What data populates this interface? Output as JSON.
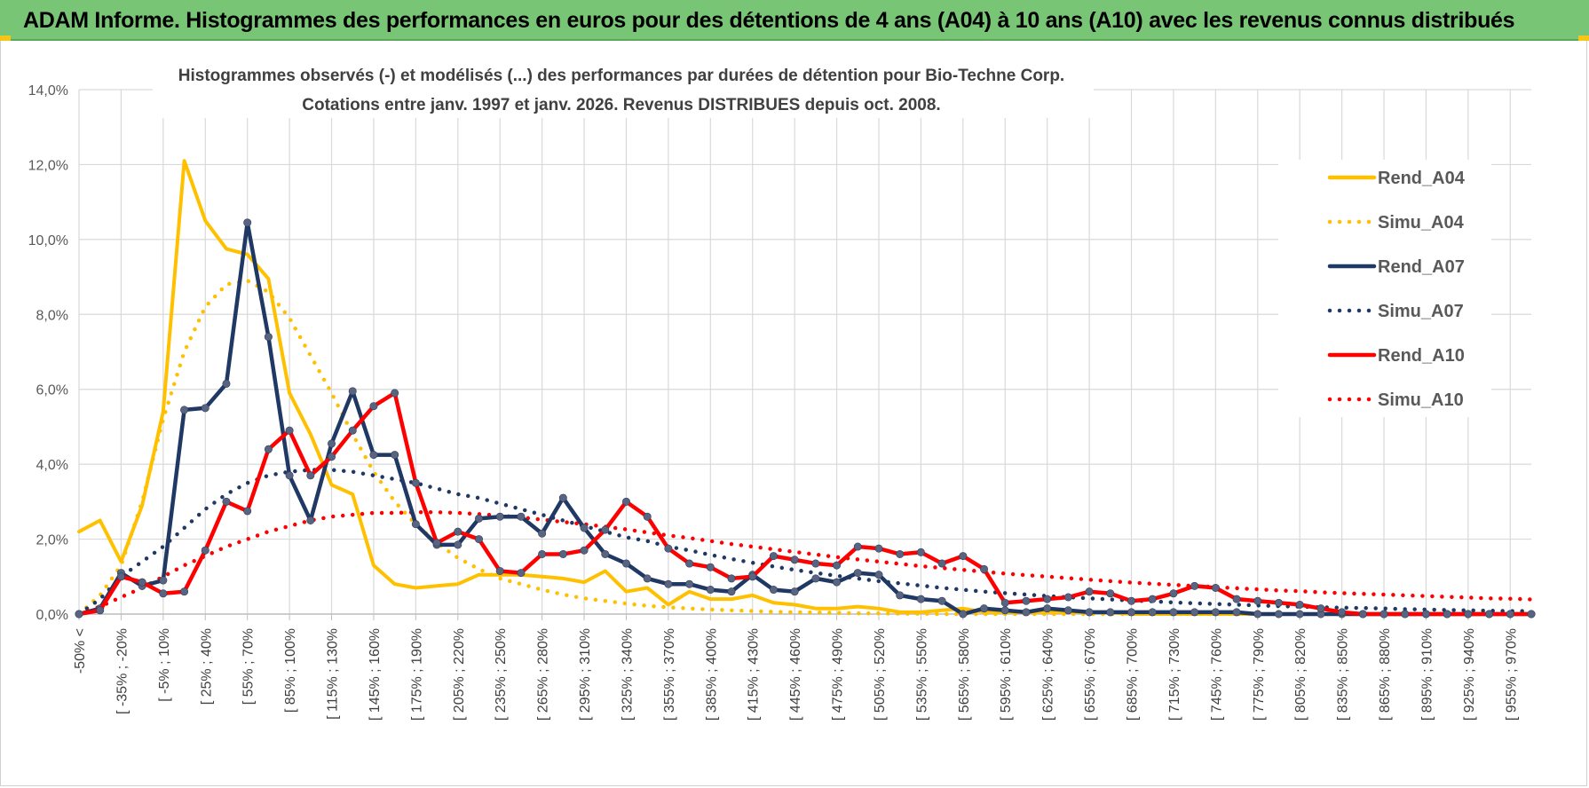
{
  "header": {
    "title": "ADAM Informe. Histogrammes des performances en euros pour des détentions de 4 ans (A04) à 10 ans (A10) avec les revenus connus distribués"
  },
  "chart_data": {
    "type": "line",
    "title": "Histogrammes observés (-) et modélisés (...) des performances par durées de détention pour Bio-Techne Corp.",
    "subtitle": "Cotations entre janv. 1997 et janv. 2026. Revenus DISTRIBUES depuis oct. 2008.",
    "xlabel": "",
    "ylabel": "",
    "ylim": [
      0,
      14
    ],
    "y_ticks": [
      "0,0%",
      "2,0%",
      "4,0%",
      "6,0%",
      "8,0%",
      "10,0%",
      "12,0%",
      "14,0%"
    ],
    "x_tick_labels": [
      "-50% <",
      "[ -35% ; -20%",
      "[ -5% ; 10%",
      "[ 25% ; 40%",
      "[ 55% ; 70%",
      "[ 85% ; 100%",
      "[ 115% ; 130%",
      "[ 145% ; 160%",
      "[ 175% ; 190%",
      "[ 205% ; 220%",
      "[ 235% ; 250%",
      "[ 265% ; 280%",
      "[ 295% ; 310%",
      "[ 325% ; 340%",
      "[ 355% ; 370%",
      "[ 385% ; 400%",
      "[ 415% ; 430%",
      "[ 445% ; 460%",
      "[ 475% ; 490%",
      "[ 505% ; 520%",
      "[ 535% ; 550%",
      "[ 565% ; 580%",
      "[ 595% ; 610%",
      "[ 625% ; 640%",
      "[ 655% ; 670%",
      "[ 685% ; 700%",
      "[ 715% ; 730%",
      "[ 745% ; 760%",
      "[ 775% ; 790%",
      "[ 805% ; 820%",
      "[ 835% ; 850%",
      "[ 865% ; 880%",
      "[ 895% ; 910%",
      "[ 925% ; 940%",
      "[ 955% ; 970%"
    ],
    "num_bins": 70,
    "legend_position": "right",
    "series": [
      {
        "name": "Rend_A04",
        "color": "#ffc000",
        "style": "solid",
        "markers": false,
        "values": [
          2.2,
          2.5,
          1.4,
          2.9,
          5.4,
          12.1,
          10.5,
          9.75,
          9.6,
          8.95,
          5.9,
          4.8,
          3.45,
          3.2,
          1.3,
          0.8,
          0.7,
          0.75,
          0.8,
          1.05,
          1.05,
          1.05,
          1.0,
          0.95,
          0.85,
          1.15,
          0.6,
          0.7,
          0.25,
          0.6,
          0.4,
          0.4,
          0.5,
          0.3,
          0.25,
          0.15,
          0.15,
          0.2,
          0.15,
          0.05,
          0.05,
          0.1,
          0.15,
          0.05,
          0.05,
          0.05,
          0.05,
          0.05,
          0.05,
          0.05,
          0.0,
          0.0,
          0.0,
          0.0,
          0.0,
          0.0,
          0.0,
          0.0,
          0.0,
          0.0,
          0.0,
          0.0,
          0.0,
          0.0,
          0.0,
          0.0,
          0.0,
          0.0,
          0.0,
          0.0
        ]
      },
      {
        "name": "Simu_A04",
        "color": "#ffc000",
        "style": "dotted",
        "markers": false,
        "values": [
          0.0,
          0.5,
          1.3,
          3.0,
          5.2,
          7.0,
          8.2,
          8.8,
          8.9,
          8.6,
          7.9,
          6.9,
          5.9,
          4.8,
          3.8,
          3.0,
          2.4,
          1.9,
          1.5,
          1.2,
          0.95,
          0.8,
          0.65,
          0.52,
          0.42,
          0.35,
          0.28,
          0.22,
          0.18,
          0.15,
          0.12,
          0.1,
          0.08,
          0.06,
          0.05,
          0.04,
          0.03,
          0.02,
          0.02,
          0.01,
          0.01,
          0.0,
          0.0,
          0.0,
          0.0,
          0.0,
          0.0,
          0.0,
          0.0,
          0.0,
          0.0,
          0.0,
          0.0,
          0.0,
          0.0,
          0.0,
          0.0,
          0.0,
          0.0,
          0.0,
          0.0,
          0.0,
          0.0,
          0.0,
          0.0,
          0.0,
          0.0,
          0.0,
          0.0,
          0.0
        ]
      },
      {
        "name": "Rend_A07",
        "color": "#1f3864",
        "style": "solid",
        "markers": true,
        "values": [
          0.0,
          0.15,
          1.1,
          0.75,
          0.9,
          5.45,
          5.5,
          6.15,
          10.45,
          7.4,
          3.7,
          2.5,
          4.55,
          5.95,
          4.25,
          4.25,
          2.4,
          1.85,
          1.85,
          2.55,
          2.6,
          2.6,
          2.15,
          3.1,
          2.3,
          1.6,
          1.35,
          0.95,
          0.8,
          0.8,
          0.65,
          0.6,
          1.05,
          0.65,
          0.6,
          0.95,
          0.85,
          1.1,
          1.05,
          0.5,
          0.4,
          0.35,
          0.0,
          0.15,
          0.1,
          0.05,
          0.15,
          0.1,
          0.05,
          0.05,
          0.05,
          0.05,
          0.05,
          0.05,
          0.05,
          0.05,
          0.0,
          0.0,
          0.0,
          0.0,
          0.0,
          0.0,
          0.0,
          0.0,
          0.0,
          0.0,
          0.0,
          0.0,
          0.0,
          0.0
        ]
      },
      {
        "name": "Simu_A07",
        "color": "#1f3864",
        "style": "dotted",
        "markers": false,
        "values": [
          0.0,
          0.4,
          1.0,
          1.4,
          1.8,
          2.3,
          2.8,
          3.2,
          3.5,
          3.7,
          3.8,
          3.85,
          3.85,
          3.8,
          3.7,
          3.6,
          3.5,
          3.35,
          3.2,
          3.1,
          2.95,
          2.8,
          2.65,
          2.5,
          2.35,
          2.2,
          2.05,
          1.95,
          1.8,
          1.7,
          1.58,
          1.47,
          1.37,
          1.27,
          1.18,
          1.1,
          1.02,
          0.95,
          0.88,
          0.82,
          0.76,
          0.7,
          0.65,
          0.6,
          0.56,
          0.52,
          0.48,
          0.45,
          0.42,
          0.39,
          0.36,
          0.34,
          0.31,
          0.29,
          0.27,
          0.25,
          0.23,
          0.21,
          0.2,
          0.18,
          0.17,
          0.16,
          0.15,
          0.13,
          0.12,
          0.11,
          0.1,
          0.09,
          0.08,
          0.08
        ]
      },
      {
        "name": "Rend_A10",
        "color": "#ff0000",
        "style": "solid",
        "markers": true,
        "values": [
          0.0,
          0.1,
          1.0,
          0.85,
          0.55,
          0.6,
          1.7,
          3.0,
          2.75,
          4.4,
          4.9,
          3.7,
          4.2,
          4.9,
          5.55,
          5.9,
          3.5,
          1.9,
          2.2,
          2.0,
          1.15,
          1.1,
          1.6,
          1.6,
          1.7,
          2.25,
          3.0,
          2.6,
          1.75,
          1.35,
          1.25,
          0.95,
          1.0,
          1.55,
          1.45,
          1.35,
          1.3,
          1.8,
          1.75,
          1.6,
          1.65,
          1.35,
          1.55,
          1.2,
          0.3,
          0.35,
          0.4,
          0.45,
          0.6,
          0.55,
          0.35,
          0.4,
          0.55,
          0.75,
          0.7,
          0.4,
          0.35,
          0.3,
          0.25,
          0.15,
          0.05,
          0.0,
          0.0,
          0.0,
          0.0,
          0.0,
          0.0,
          0.0,
          0.0,
          0.0
        ]
      },
      {
        "name": "Simu_A10",
        "color": "#ff0000",
        "style": "dotted",
        "markers": false,
        "values": [
          0.0,
          0.2,
          0.45,
          0.7,
          1.0,
          1.3,
          1.55,
          1.8,
          2.0,
          2.2,
          2.35,
          2.5,
          2.6,
          2.65,
          2.7,
          2.7,
          2.72,
          2.72,
          2.7,
          2.67,
          2.63,
          2.58,
          2.52,
          2.46,
          2.4,
          2.33,
          2.26,
          2.18,
          2.1,
          2.03,
          1.95,
          1.87,
          1.8,
          1.73,
          1.66,
          1.59,
          1.52,
          1.46,
          1.4,
          1.34,
          1.28,
          1.23,
          1.18,
          1.13,
          1.08,
          1.04,
          1.0,
          0.96,
          0.92,
          0.88,
          0.84,
          0.81,
          0.78,
          0.75,
          0.72,
          0.69,
          0.66,
          0.63,
          0.61,
          0.58,
          0.56,
          0.54,
          0.52,
          0.5,
          0.48,
          0.46,
          0.44,
          0.42,
          0.41,
          0.39
        ]
      }
    ]
  }
}
